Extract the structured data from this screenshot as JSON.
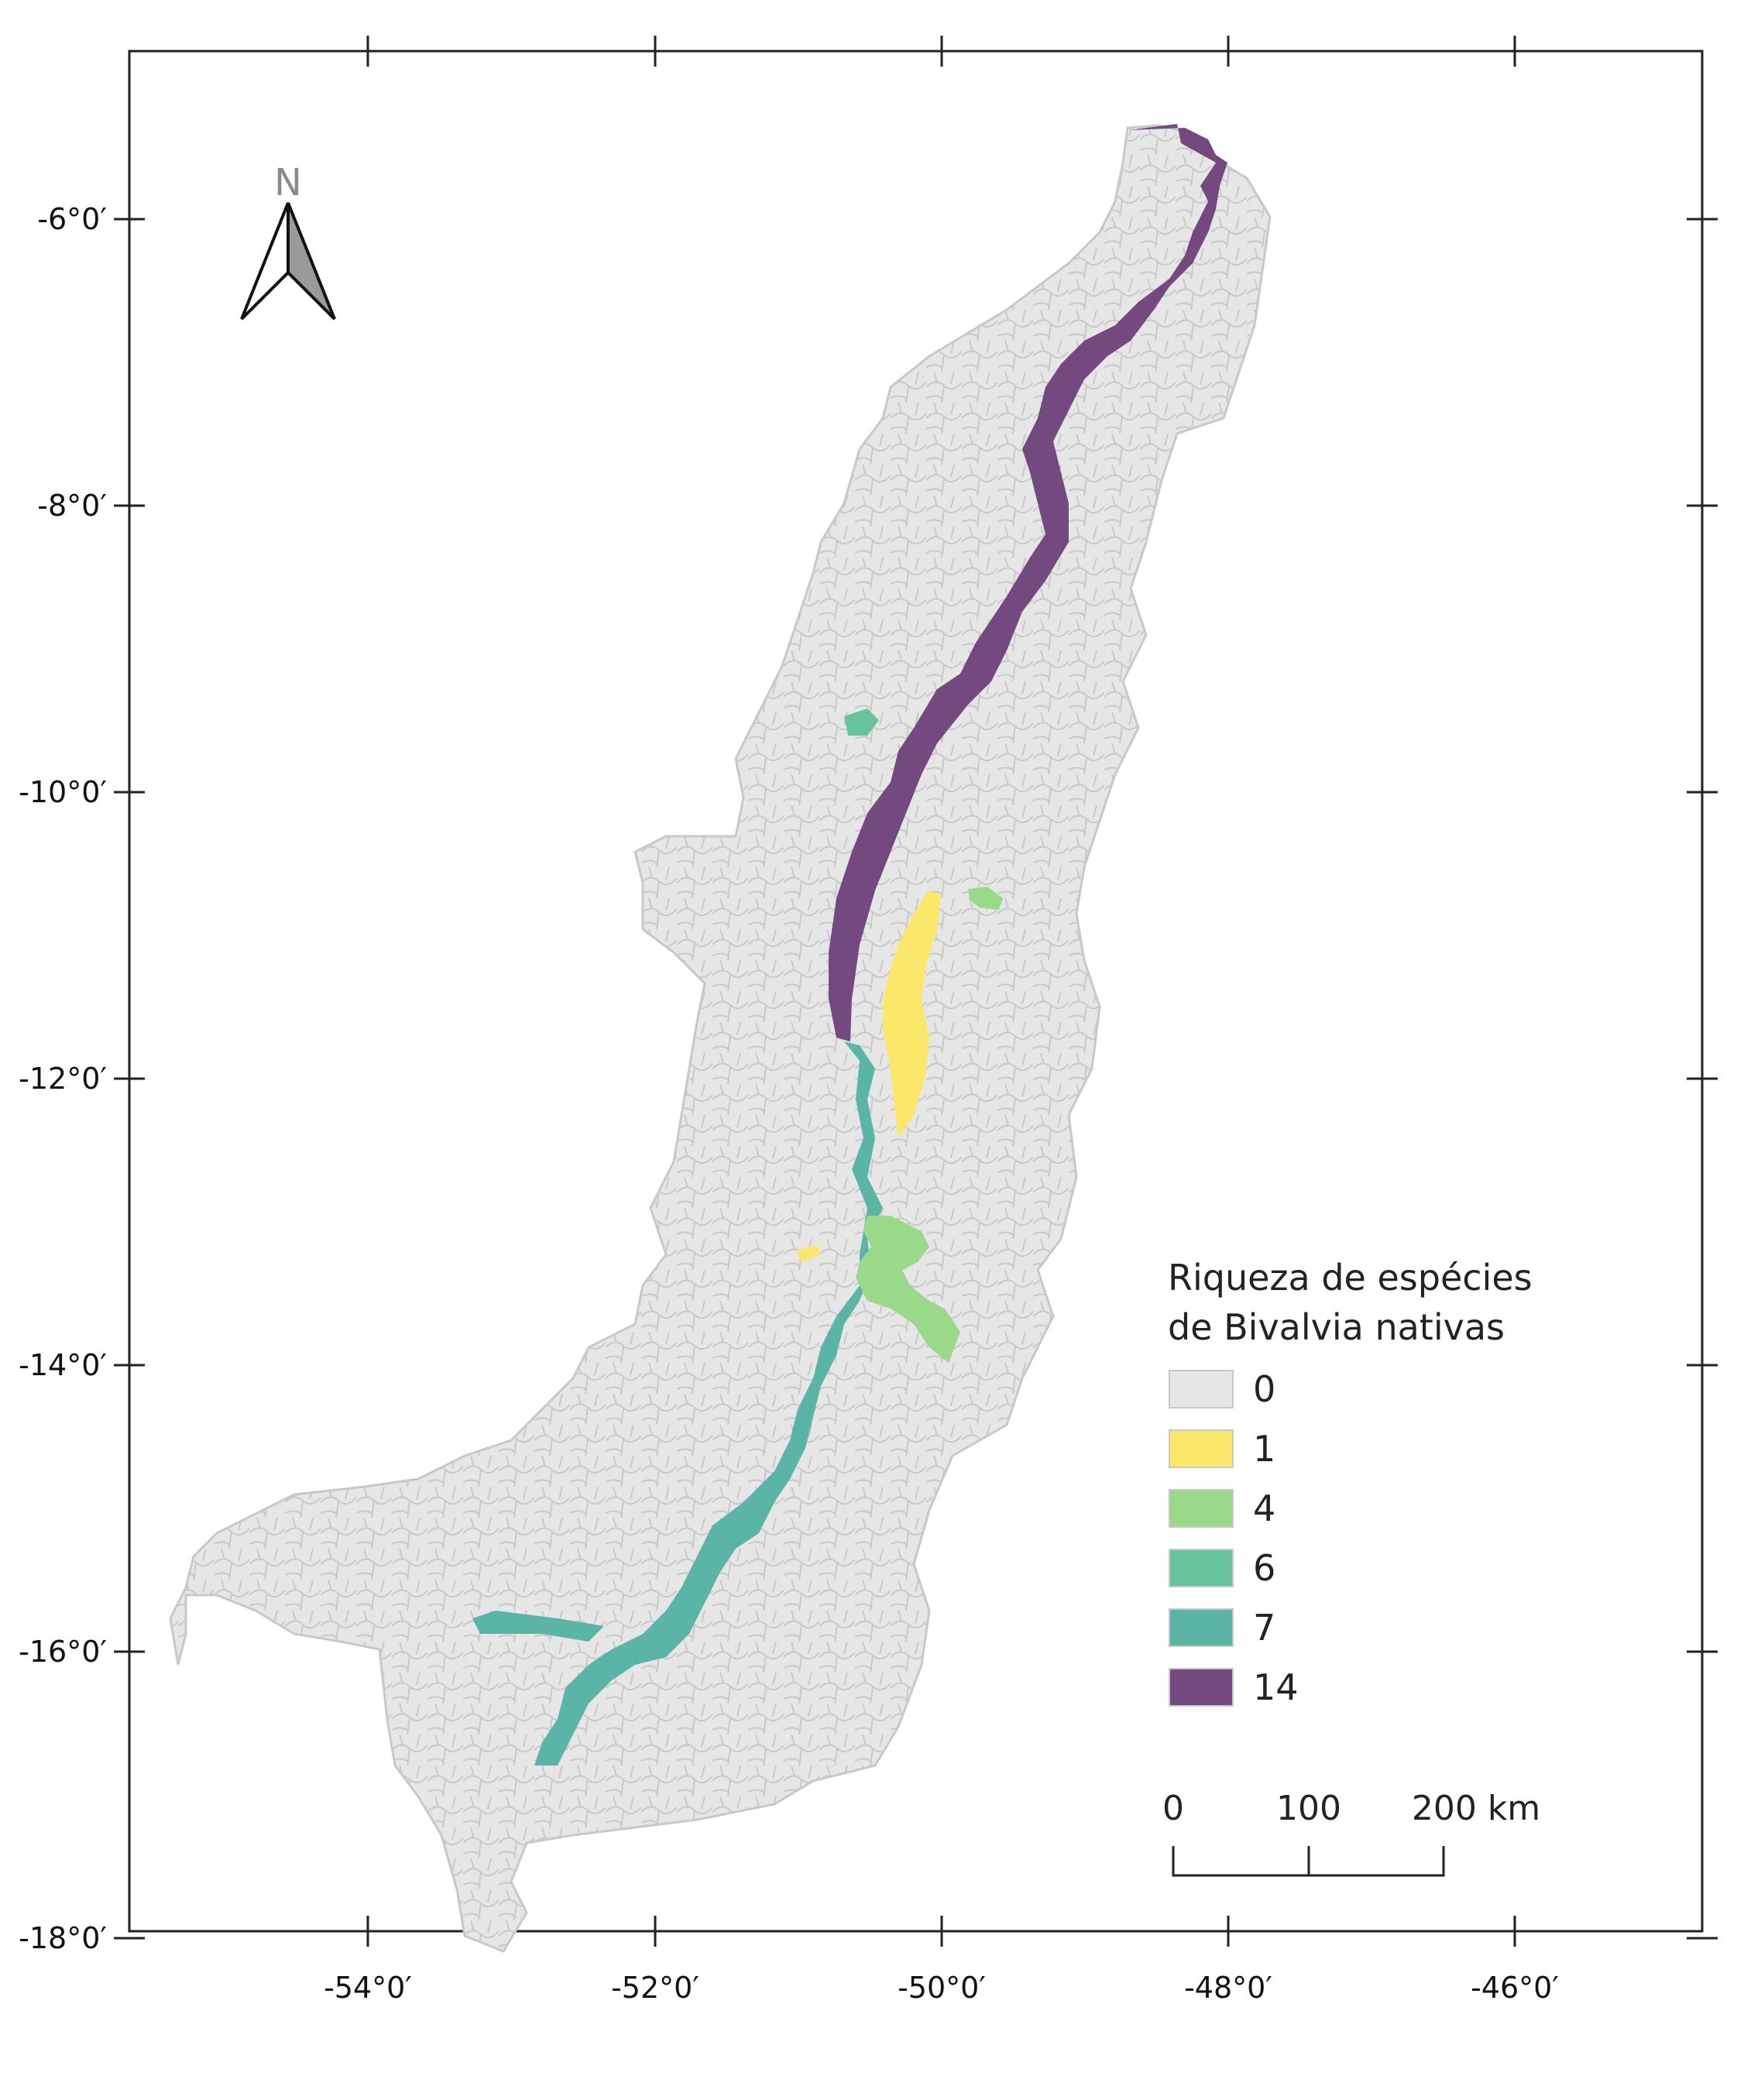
{
  "map": {
    "lon_ticks": [
      "-54°0′",
      "-52°0′",
      "-50°0′",
      "-48°0′",
      "-46°0′"
    ],
    "lat_ticks": [
      "-6°0′",
      "-8°0′",
      "-10°0′",
      "-12°0′",
      "-14°0′",
      "-16°0′",
      "-18°0′"
    ],
    "basin_fill": "#e6e6e6",
    "basin_stroke": "#c8c8c8"
  },
  "north_arrow": {
    "letter": "N"
  },
  "legend": {
    "title_line1": "Riqueza de espécies",
    "title_line2": "de Bivalvia nativas",
    "items": [
      {
        "label": "0",
        "color": "#e6e6e6"
      },
      {
        "label": "1",
        "color": "#fbe86a"
      },
      {
        "label": "4",
        "color": "#9ad98a"
      },
      {
        "label": "6",
        "color": "#66c39b"
      },
      {
        "label": "7",
        "color": "#5ab5a6"
      },
      {
        "label": "14",
        "color": "#74497f"
      }
    ]
  },
  "scale_bar": {
    "labels": [
      "0",
      "100",
      "200 km"
    ]
  }
}
